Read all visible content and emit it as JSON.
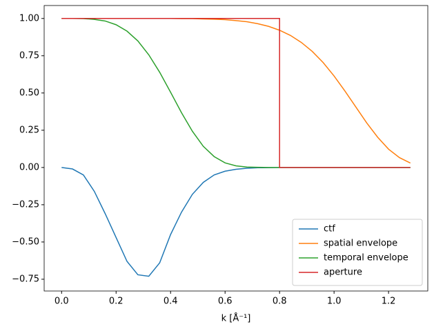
{
  "chart_data": {
    "type": "line",
    "x_label": "k [Å⁻¹]",
    "x": [
      0,
      0.04,
      0.08,
      0.12,
      0.16,
      0.2,
      0.24,
      0.28,
      0.32,
      0.36,
      0.4,
      0.44,
      0.48,
      0.52,
      0.56,
      0.6,
      0.64,
      0.68,
      0.72,
      0.76,
      0.8,
      0.84,
      0.88,
      0.92,
      0.96,
      1.0,
      1.04,
      1.08,
      1.12,
      1.16,
      1.2,
      1.24,
      1.28
    ],
    "series": [
      {
        "name": "ctf",
        "color": "#1f77b4",
        "values": [
          0,
          -0.01,
          -0.05,
          -0.16,
          -0.31,
          -0.47,
          -0.63,
          -0.72,
          -0.73,
          -0.64,
          -0.45,
          -0.3,
          -0.18,
          -0.1,
          -0.05,
          -0.025,
          -0.012,
          -0.005,
          -0.002,
          -0.001,
          0,
          0,
          0,
          0,
          0,
          0,
          0,
          0,
          0,
          0,
          0,
          0,
          0
        ]
      },
      {
        "name": "spatial envelope",
        "color": "#ff7f0e",
        "values": [
          1,
          1,
          1,
          1,
          1,
          1,
          1,
          1,
          1,
          1,
          1,
          0.999,
          0.999,
          0.997,
          0.995,
          0.992,
          0.986,
          0.978,
          0.965,
          0.947,
          0.921,
          0.886,
          0.839,
          0.779,
          0.704,
          0.614,
          0.513,
          0.406,
          0.299,
          0.203,
          0.123,
          0.066,
          0.03
        ]
      },
      {
        "name": "temporal envelope",
        "color": "#2ca02c",
        "values": [
          1,
          1,
          0.999,
          0.994,
          0.983,
          0.958,
          0.915,
          0.849,
          0.756,
          0.639,
          0.505,
          0.368,
          0.243,
          0.142,
          0.073,
          0.031,
          0.011,
          0.003,
          0.001,
          0,
          0,
          0,
          0,
          0,
          0,
          0,
          0,
          0,
          0,
          0,
          0,
          0,
          0
        ]
      },
      {
        "name": "aperture",
        "color": "#d62728",
        "x": [
          0,
          0.8,
          0.8,
          1.28
        ],
        "values": [
          1,
          1,
          0,
          0
        ]
      }
    ],
    "xlim": [
      -0.064,
      1.344
    ],
    "ylim": [
      -0.829,
      1.087
    ],
    "xticks": [
      {
        "value": 0,
        "label": "0.0"
      },
      0.2,
      0.4,
      0.6,
      0.8,
      {
        "value": 1,
        "label": "1.0"
      },
      1.2
    ],
    "yticks": [
      {
        "value": -0.75,
        "label": "−0.75"
      },
      {
        "value": -0.5,
        "label": "−0.50"
      },
      {
        "value": -0.25,
        "label": "−0.25"
      },
      {
        "value": 0,
        "label": "0.00"
      },
      0.25,
      {
        "value": 0.5,
        "label": "0.50"
      },
      0.75,
      {
        "value": 1,
        "label": "1.00"
      }
    ],
    "legend": "lower right"
  }
}
